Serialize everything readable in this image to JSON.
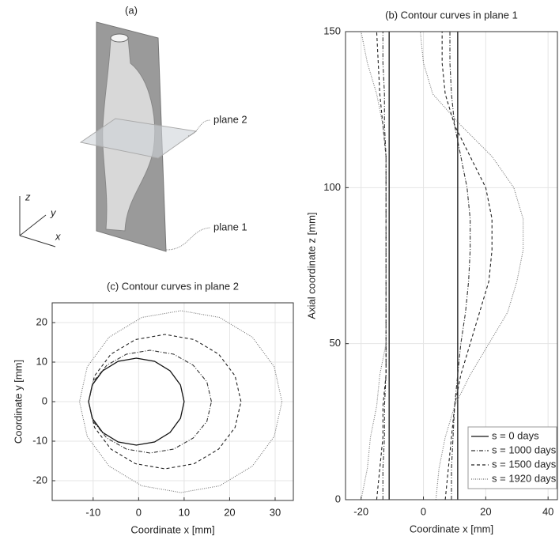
{
  "illustration": {
    "label": "(a)",
    "plane_2": "plane 2",
    "plane_1": "plane 1",
    "axis_z": "z",
    "axis_y": "y",
    "axis_x": "x"
  },
  "chart_data": [
    {
      "type": "line",
      "title": "(b) Contour curves in plane 1",
      "xlabel": "Coordinate x [mm]",
      "ylabel": "Axial coordinate z [mm]",
      "xlim": [
        -25,
        43
      ],
      "xticks": [
        -20,
        0,
        20,
        40
      ],
      "ylim": [
        0,
        150
      ],
      "yticks": [
        0,
        50,
        100,
        150
      ],
      "grid": true,
      "legend": "lower right",
      "z": [
        0,
        10,
        20,
        30,
        40,
        50,
        60,
        70,
        80,
        90,
        100,
        110,
        120,
        130,
        140,
        150
      ],
      "series": [
        {
          "name": "s = 0 days",
          "color": "#111111",
          "style": "solid",
          "x_left": [
            -11,
            -11,
            -11,
            -11,
            -11,
            -11,
            -11,
            -11,
            -11,
            -11,
            -11,
            -11,
            -11,
            -11,
            -11,
            -11
          ],
          "x_right": [
            11,
            11,
            11,
            11,
            11,
            11,
            11,
            11,
            11,
            11,
            11,
            11,
            11,
            11,
            11,
            11
          ]
        },
        {
          "name": "s = 1000 days",
          "color": "#333333",
          "style": "dashdot",
          "x_left": [
            -13,
            -13,
            -12.5,
            -12.5,
            -12,
            -12,
            -12,
            -12,
            -12,
            -12,
            -12,
            -12,
            -12.5,
            -12.5,
            -13,
            -13
          ],
          "x_right": [
            9,
            9,
            9.5,
            10,
            11,
            12,
            13.5,
            14.5,
            15,
            15,
            14,
            12,
            10,
            9,
            8.5,
            8.5
          ]
        },
        {
          "name": "s = 1500 days",
          "color": "#222222",
          "style": "dashed",
          "x_left": [
            -15,
            -14,
            -13,
            -13,
            -12,
            -12,
            -12,
            -12,
            -12,
            -12,
            -12,
            -12,
            -13,
            -14,
            -14.5,
            -15
          ],
          "x_right": [
            7,
            8,
            9,
            10,
            12,
            15,
            18,
            21,
            22,
            22,
            20,
            15,
            10,
            7,
            6,
            6
          ]
        },
        {
          "name": "s = 1920 days",
          "color": "#777777",
          "style": "dotted",
          "x_left": [
            -20,
            -18,
            -17,
            -15,
            -14,
            -12,
            -12,
            -12,
            -12,
            -12,
            -12,
            -12,
            -13,
            -15,
            -18,
            -20
          ],
          "x_right": [
            4,
            5,
            7,
            10,
            15,
            21,
            27,
            30,
            32,
            32,
            29,
            22,
            12,
            3,
            0,
            -1
          ]
        }
      ]
    },
    {
      "type": "line",
      "closed": true,
      "title": "(c) Contour curves in plane 2",
      "xlabel": "Coordinate x [mm]",
      "ylabel": "Coordinate y [mm]",
      "xlim": [
        -19,
        34
      ],
      "xticks": [
        -10,
        0,
        10,
        20,
        30
      ],
      "ylim": [
        -25,
        25
      ],
      "yticks": [
        -20,
        -10,
        0,
        10,
        20
      ],
      "grid": true,
      "series": [
        {
          "name": "s = 0 days",
          "color": "#111111",
          "style": "solid",
          "x": [
            10,
            9.2,
            6.9,
            3.5,
            -0.5,
            -4.5,
            -7.9,
            -10.2,
            -11,
            -10.2,
            -7.9,
            -4.5,
            -0.5,
            3.5,
            6.9,
            9.2
          ],
          "y": [
            0,
            4.2,
            7.8,
            10.2,
            11,
            10.2,
            7.8,
            4.2,
            0,
            -4.2,
            -7.8,
            -10.2,
            -11,
            -10.2,
            -7.8,
            -4.2
          ]
        },
        {
          "name": "s = 1000 days",
          "color": "#333333",
          "style": "dashdot",
          "x": [
            16,
            15,
            12,
            7.7,
            2.5,
            -2.7,
            -7,
            -10,
            -11,
            -10,
            -7,
            -2.7,
            2.5,
            7.7,
            12,
            15
          ],
          "y": [
            0,
            5,
            9.2,
            12,
            13,
            12,
            9.2,
            5,
            0,
            -5,
            -9.2,
            -12,
            -13,
            -12,
            -9.2,
            -5
          ]
        },
        {
          "name": "s = 1500 days",
          "color": "#222222",
          "style": "dashed",
          "x": [
            22.5,
            21.2,
            17.6,
            12.2,
            5.8,
            -0.7,
            -6.1,
            -9.7,
            -11,
            -9.7,
            -6.1,
            -0.7,
            5.8,
            12.2,
            17.6,
            21.2
          ],
          "y": [
            0,
            6.5,
            12,
            15.7,
            17,
            15.7,
            12,
            6.5,
            0,
            -6.5,
            -12,
            -15.7,
            -17,
            -15.7,
            -12,
            -6.5
          ]
        },
        {
          "name": "s = 1920 days",
          "color": "#777777",
          "style": "dotted",
          "x": [
            31.5,
            29.8,
            25,
            17.8,
            9.3,
            0.7,
            -6.5,
            -11.3,
            -13,
            -11.3,
            -6.5,
            0.7,
            9.3,
            17.8,
            25,
            29.8
          ],
          "y": [
            0,
            8.8,
            16.3,
            21.3,
            23,
            21.3,
            16.3,
            8.8,
            0,
            -8.8,
            -16.3,
            -21.3,
            -23,
            -21.3,
            -16.3,
            -8.8
          ]
        }
      ]
    }
  ]
}
